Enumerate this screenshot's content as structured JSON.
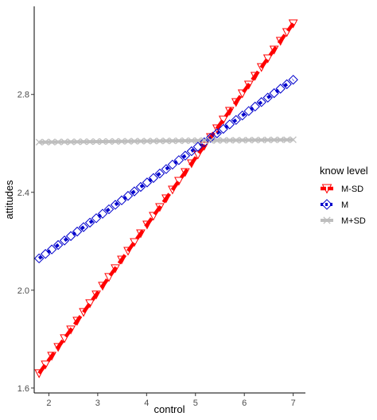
{
  "chart_data": {
    "type": "line",
    "xlabel": "control",
    "ylabel": "attitudes",
    "xlim": [
      1.7,
      7.25
    ],
    "ylim": [
      1.58,
      3.16
    ],
    "x_ticks": [
      "2",
      "3",
      "4",
      "5",
      "6",
      "7"
    ],
    "y_ticks": [
      "1.6",
      "2.0",
      "2.4",
      "2.8"
    ],
    "grid": false,
    "legend": {
      "title": "know level",
      "position": "right"
    },
    "series": [
      {
        "name": "M-SD",
        "color": "#ff0000",
        "marker": "triangle-down",
        "line": "dashed",
        "x": [
          1.8,
          7.0
        ],
        "y": [
          1.66,
          3.09
        ]
      },
      {
        "name": "M",
        "color": "#0000cc",
        "marker": "diamond",
        "line": "dotted",
        "x": [
          1.8,
          7.0
        ],
        "y": [
          2.13,
          2.86
        ]
      },
      {
        "name": "M+SD",
        "color": "#bebebe",
        "marker": "x",
        "line": "solid",
        "x": [
          1.8,
          7.0
        ],
        "y": [
          2.605,
          2.615
        ]
      }
    ]
  }
}
